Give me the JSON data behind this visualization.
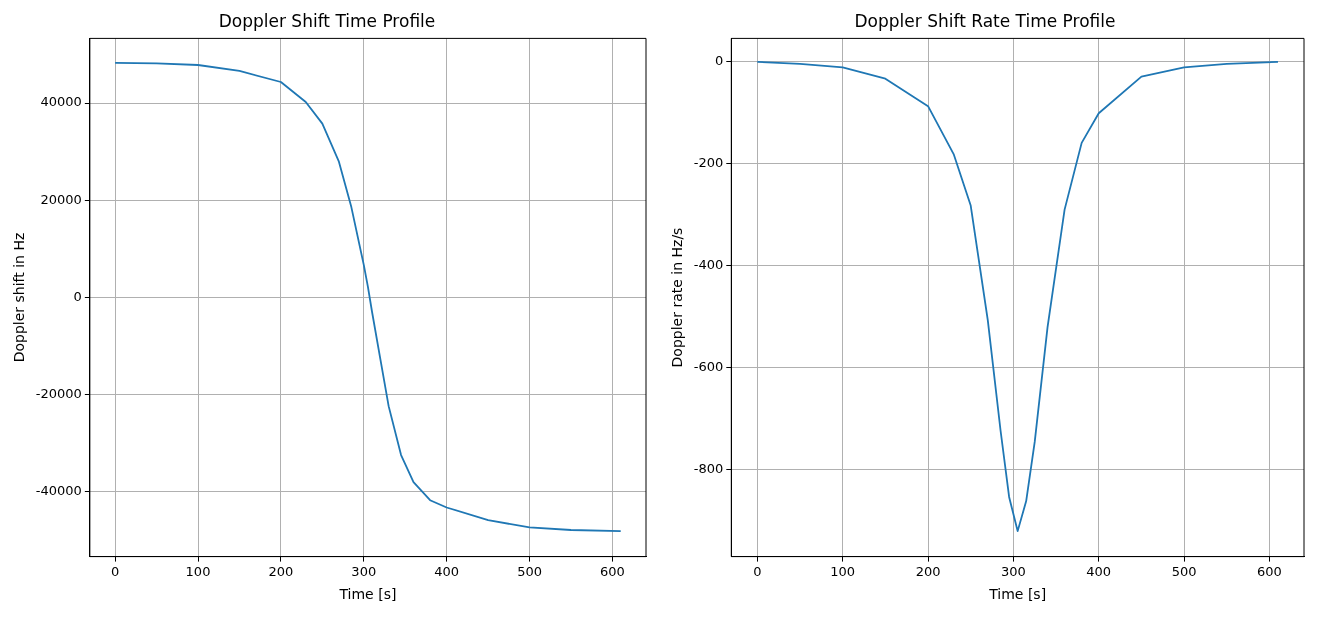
{
  "chart_data": [
    {
      "type": "line",
      "title": "Doppler Shift Time Profile",
      "xlabel": "Time [s]",
      "ylabel": "Doppler shift in Hz",
      "marker": "none",
      "grid": true,
      "xlim": [
        -30.5,
        640.5
      ],
      "xticks": [
        0,
        100,
        200,
        300,
        400,
        500,
        600
      ],
      "ylim": [
        -53300,
        53300
      ],
      "yticks": [
        -40000,
        -20000,
        0,
        20000,
        40000
      ],
      "series": [
        {
          "color": "#1f77b4",
          "x": [
            0,
            50,
            100,
            150,
            200,
            230,
            250,
            270,
            285,
            300,
            305,
            310,
            320,
            330,
            345,
            360,
            380,
            400,
            450,
            500,
            550,
            610
          ],
          "values": [
            48280,
            48150,
            47830,
            46600,
            44330,
            40230,
            35760,
            27940,
            18600,
            6700,
            2200,
            -2980,
            -12660,
            -22350,
            -32400,
            -38000,
            -41700,
            -43200,
            -45800,
            -47300,
            -47830,
            -48050
          ]
        }
      ]
    },
    {
      "type": "line",
      "title": "Doppler Shift Rate Time Profile",
      "xlabel": "Time [s]",
      "ylabel": "Doppler rate in Hz/s",
      "marker": "none",
      "grid": true,
      "xlim": [
        -30.5,
        640.5
      ],
      "xticks": [
        0,
        100,
        200,
        300,
        400,
        500,
        600
      ],
      "ylim": [
        -971,
        46
      ],
      "yticks": [
        -800,
        -600,
        -400,
        -200,
        0
      ],
      "series": [
        {
          "color": "#1f77b4",
          "x": [
            0,
            50,
            100,
            150,
            200,
            230,
            250,
            270,
            285,
            295,
            305,
            315,
            325,
            340,
            360,
            380,
            400,
            450,
            500,
            550,
            610
          ],
          "values": [
            0,
            -4,
            -11,
            -33,
            -87,
            -181,
            -282,
            -507,
            -724,
            -854,
            -921,
            -862,
            -746,
            -521,
            -290,
            -159,
            -101,
            -29,
            -11,
            -4,
            0
          ]
        }
      ]
    }
  ]
}
